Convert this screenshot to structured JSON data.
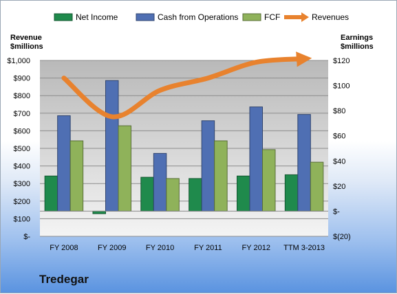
{
  "chart_data": {
    "type": "bar",
    "company": "Tredegar",
    "categories": [
      "FY 2008",
      "FY 2009",
      "FY 2010",
      "FY 2011",
      "FY 2012",
      "TTM 3-2013"
    ],
    "left_axis": {
      "label_line1": "Revenue",
      "label_line2": "$millions",
      "range": [
        0,
        1000
      ],
      "ticks": [
        "$-",
        "$100",
        "$200",
        "$300",
        "$400",
        "$500",
        "$600",
        "$700",
        "$800",
        "$900",
        "$1,000"
      ]
    },
    "right_axis": {
      "label_line1": "Earnings",
      "label_line2": "$millions",
      "range": [
        -20,
        120
      ],
      "ticks": [
        "$(20)",
        "$-",
        "$20",
        "$40",
        "$60",
        "$80",
        "$100",
        "$120"
      ]
    },
    "series": [
      {
        "name": "Net Income",
        "axis": "right",
        "color": "#1f8a4c",
        "values": [
          28,
          -2,
          27,
          26,
          28,
          29
        ]
      },
      {
        "name": "Cash from Operations",
        "axis": "right",
        "color": "#4f6fb3",
        "values": [
          76,
          104,
          46,
          72,
          83,
          77
        ]
      },
      {
        "name": "FCF",
        "axis": "right",
        "color": "#8fb25a",
        "values": [
          56,
          68,
          26,
          56,
          49,
          39
        ]
      },
      {
        "name": "Revenues",
        "axis": "left",
        "type": "line",
        "color": "#e8822e",
        "values": [
          900,
          680,
          830,
          900,
          990,
          1010
        ]
      }
    ]
  }
}
